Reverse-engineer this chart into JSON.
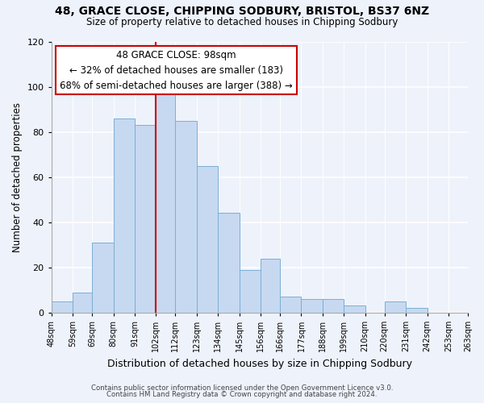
{
  "title": "48, GRACE CLOSE, CHIPPING SODBURY, BRISTOL, BS37 6NZ",
  "subtitle": "Size of property relative to detached houses in Chipping Sodbury",
  "xlabel": "Distribution of detached houses by size in Chipping Sodbury",
  "ylabel": "Number of detached properties",
  "bins": [
    48,
    59,
    69,
    80,
    91,
    102,
    112,
    123,
    134,
    145,
    156,
    166,
    177,
    188,
    199,
    210,
    220,
    231,
    242,
    253,
    263
  ],
  "counts": [
    5,
    9,
    31,
    86,
    83,
    98,
    85,
    65,
    44,
    19,
    24,
    7,
    6,
    6,
    3,
    0,
    5,
    2,
    0,
    0
  ],
  "bar_color": "#c6d9f1",
  "bar_edge_color": "#7bafd4",
  "vline_x": 102,
  "vline_color": "#cc0000",
  "annotation_title": "48 GRACE CLOSE: 98sqm",
  "annotation_line1": "← 32% of detached houses are smaller (183)",
  "annotation_line2": "68% of semi-detached houses are larger (388) →",
  "annotation_box_color": "white",
  "annotation_box_edge": "#cc0000",
  "ylim": [
    0,
    120
  ],
  "yticks": [
    0,
    20,
    40,
    60,
    80,
    100,
    120
  ],
  "tick_labels": [
    "48sqm",
    "59sqm",
    "69sqm",
    "80sqm",
    "91sqm",
    "102sqm",
    "112sqm",
    "123sqm",
    "134sqm",
    "145sqm",
    "156sqm",
    "166sqm",
    "177sqm",
    "188sqm",
    "199sqm",
    "210sqm",
    "220sqm",
    "231sqm",
    "242sqm",
    "253sqm",
    "263sqm"
  ],
  "footer1": "Contains HM Land Registry data © Crown copyright and database right 2024.",
  "footer2": "Contains public sector information licensed under the Open Government Licence v3.0.",
  "bg_color": "#eef2fb"
}
